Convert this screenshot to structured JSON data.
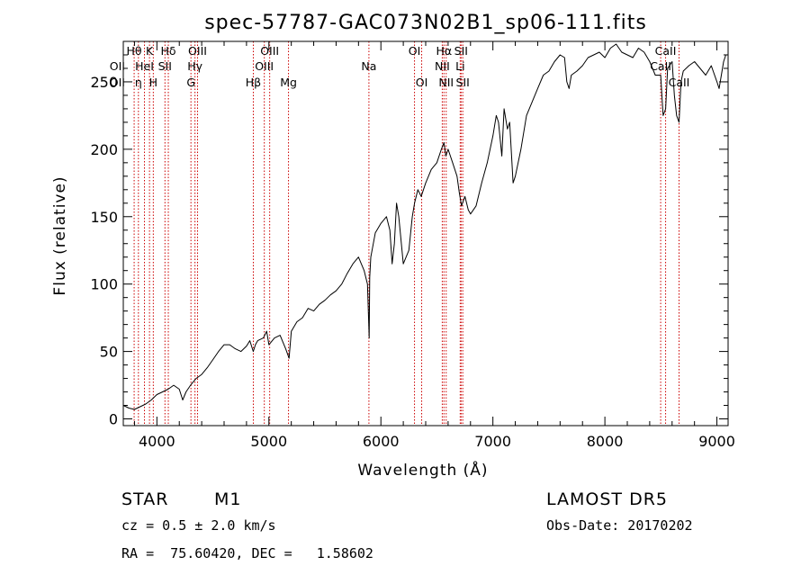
{
  "chart_data": {
    "type": "line",
    "title": "spec-57787-GAC073N02B1_sp06-111.fits",
    "xlabel": "Wavelength (Å)",
    "ylabel": "Flux (relative)",
    "xlim": [
      3700,
      9100
    ],
    "ylim": [
      -5,
      280
    ],
    "x_ticks": [
      4000,
      5000,
      6000,
      7000,
      8000,
      9000
    ],
    "y_ticks": [
      0,
      50,
      100,
      150,
      200,
      250
    ],
    "x_tick_labels": [
      "4000",
      "5000",
      "6000",
      "7000",
      "8000",
      "9000"
    ],
    "y_tick_labels": [
      "0",
      "50",
      "100",
      "150",
      "200",
      "250"
    ],
    "series": [
      {
        "x": [
          3700,
          3750,
          3800,
          3850,
          3900,
          3950,
          4000,
          4050,
          4100,
          4150,
          4200,
          4230,
          4260,
          4300,
          4350,
          4400,
          4450,
          4500,
          4550,
          4600,
          4650,
          4700,
          4750,
          4800,
          4830,
          4860,
          4880,
          4900,
          4950,
          4980,
          5000,
          5050,
          5100,
          5150,
          5180,
          5200,
          5250,
          5300,
          5350,
          5400,
          5450,
          5500,
          5550,
          5600,
          5650,
          5700,
          5750,
          5800,
          5850,
          5880,
          5890,
          5895,
          5900,
          5910,
          5950,
          6000,
          6050,
          6080,
          6100,
          6120,
          6140,
          6160,
          6200,
          6250,
          6280,
          6300,
          6330,
          6360,
          6400,
          6450,
          6500,
          6540,
          6563,
          6580,
          6600,
          6640,
          6680,
          6700,
          6720,
          6750,
          6780,
          6800,
          6850,
          6900,
          6950,
          7000,
          7030,
          7050,
          7080,
          7100,
          7130,
          7150,
          7180,
          7200,
          7250,
          7300,
          7350,
          7400,
          7450,
          7500,
          7550,
          7600,
          7640,
          7660,
          7680,
          7700,
          7750,
          7800,
          7850,
          7900,
          7950,
          8000,
          8050,
          8100,
          8150,
          8200,
          8250,
          8300,
          8350,
          8400,
          8450,
          8498,
          8520,
          8542,
          8560,
          8600,
          8620,
          8640,
          8662,
          8680,
          8700,
          8750,
          8800,
          8850,
          8900,
          8950,
          9000,
          9020,
          9040,
          9060,
          9080
        ],
        "y": [
          10,
          8,
          7,
          9,
          11,
          14,
          18,
          20,
          22,
          25,
          22,
          14,
          20,
          25,
          30,
          33,
          38,
          44,
          50,
          55,
          55,
          52,
          50,
          54,
          58,
          50,
          55,
          58,
          60,
          65,
          55,
          60,
          62,
          52,
          45,
          65,
          72,
          75,
          82,
          80,
          85,
          88,
          92,
          95,
          100,
          108,
          115,
          120,
          110,
          100,
          75,
          60,
          105,
          120,
          138,
          145,
          150,
          140,
          115,
          130,
          160,
          150,
          115,
          125,
          150,
          160,
          170,
          165,
          175,
          185,
          190,
          200,
          205,
          195,
          200,
          190,
          180,
          168,
          158,
          165,
          155,
          152,
          158,
          175,
          190,
          210,
          225,
          220,
          195,
          230,
          215,
          220,
          175,
          180,
          200,
          225,
          235,
          245,
          255,
          258,
          265,
          270,
          268,
          250,
          245,
          255,
          258,
          262,
          268,
          270,
          272,
          268,
          275,
          278,
          272,
          270,
          268,
          275,
          272,
          265,
          255,
          255,
          225,
          230,
          260,
          265,
          240,
          225,
          220,
          250,
          258,
          262,
          265,
          260,
          255,
          262,
          250,
          245,
          255,
          265,
          270
        ]
      }
    ],
    "spectral_lines": [
      {
        "x": 3797,
        "label": "Hθ",
        "row": 1
      },
      {
        "x": 3835,
        "label": "η",
        "row": 3
      },
      {
        "x": 3889,
        "label": "HeI",
        "row": 2
      },
      {
        "x": 3934,
        "label": "K",
        "row": 1
      },
      {
        "x": 3968,
        "label": "H",
        "row": 3
      },
      {
        "x": 4072,
        "label": "SII",
        "row": 2
      },
      {
        "x": 4102,
        "label": "Hδ",
        "row": 1
      },
      {
        "x": 4304,
        "label": "G",
        "row": 3
      },
      {
        "x": 4340,
        "label": "Hγ",
        "row": 2
      },
      {
        "x": 4363,
        "label": "OIII",
        "row": 1
      },
      {
        "x": 4861,
        "label": "Hβ",
        "row": 3
      },
      {
        "x": 4959,
        "label": "OIII",
        "row": 2
      },
      {
        "x": 5007,
        "label": "OIII",
        "row": 1
      },
      {
        "x": 5175,
        "label": "Mg",
        "row": 3
      },
      {
        "x": 5893,
        "label": "Na",
        "row": 2
      },
      {
        "x": 6300,
        "label": "OI",
        "row": 1
      },
      {
        "x": 6364,
        "label": "OI",
        "row": 3
      },
      {
        "x": 6548,
        "label": "NII",
        "row": 2
      },
      {
        "x": 6563,
        "label": "Hα",
        "row": 1
      },
      {
        "x": 6583,
        "label": "NII",
        "row": 3
      },
      {
        "x": 6708,
        "label": "Li",
        "row": 2
      },
      {
        "x": 6716,
        "label": "SII",
        "row": 1
      },
      {
        "x": 6731,
        "label": "SII",
        "row": 3
      },
      {
        "x": 8498,
        "label": "CaII",
        "row": 2
      },
      {
        "x": 8542,
        "label": "CaII",
        "row": 1
      },
      {
        "x": 8662,
        "label": "CaII",
        "row": 3
      }
    ]
  },
  "extra_line_labels": [
    {
      "label": "OII",
      "row": 2,
      "dx": -10
    },
    {
      "label": "OII",
      "row": 3,
      "dx": -10
    }
  ],
  "info": {
    "object_class": "STAR",
    "subclass": "M1",
    "survey": "LAMOST DR5",
    "redshift": "cz = 0.5 ± 2.0 km/s",
    "obs_date": "Obs-Date: 20170202",
    "coords": "RA =  75.60420, DEC =   1.58602"
  },
  "colors": {
    "spectrum": "#000000",
    "line_marker": "#cc0000",
    "axes": "#000000",
    "background": "#ffffff"
  }
}
